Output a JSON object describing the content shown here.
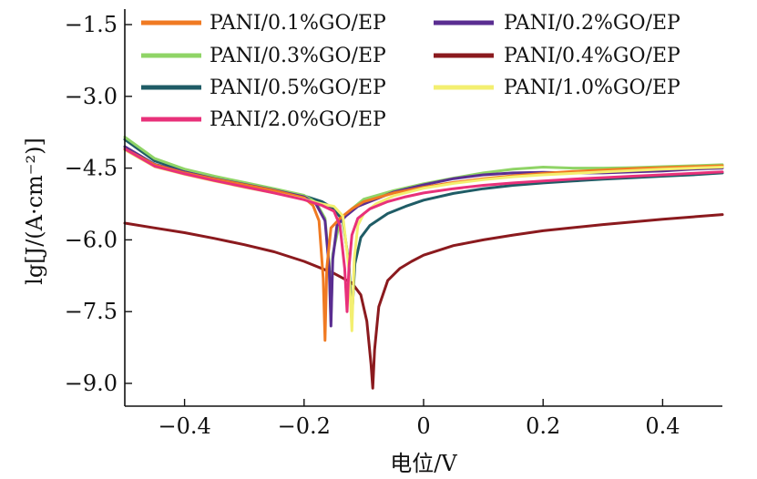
{
  "chart_data": {
    "type": "line",
    "xlabel": "电位/V",
    "ylabel": "lg[J/(A·cm⁻²)]",
    "xlim": [
      -0.5,
      0.5
    ],
    "ylim": [
      -9.5,
      -1.5
    ],
    "x_ticks": [
      -0.4,
      -0.2,
      0,
      0.2,
      0.4
    ],
    "x_tick_labels": [
      "−0.4",
      "−0.2",
      "0",
      "0.2",
      "0.4"
    ],
    "y_ticks": [
      -1.5,
      -3.0,
      -4.5,
      -6.0,
      -7.5,
      -9.0
    ],
    "y_tick_labels": [
      "−1.5",
      "−3.0",
      "−4.5",
      "−6.0",
      "−7.5",
      "−9.0"
    ],
    "grid": false,
    "legend_position": "top",
    "series": [
      {
        "name": "PANI/0.1%GO/EP",
        "color": "#f07a22",
        "x": [
          -0.5,
          -0.45,
          -0.4,
          -0.35,
          -0.3,
          -0.25,
          -0.2,
          -0.185,
          -0.175,
          -0.168,
          -0.165,
          -0.162,
          -0.155,
          -0.14,
          -0.12,
          -0.1,
          -0.05,
          0.0,
          0.05,
          0.1,
          0.15,
          0.2,
          0.25,
          0.3,
          0.35,
          0.4,
          0.45,
          0.5
        ],
        "y": [
          -4.1,
          -4.43,
          -4.6,
          -4.73,
          -4.85,
          -4.97,
          -5.12,
          -5.28,
          -5.6,
          -6.8,
          -8.1,
          -6.6,
          -5.75,
          -5.55,
          -5.35,
          -5.2,
          -5.02,
          -4.9,
          -4.8,
          -4.72,
          -4.66,
          -4.61,
          -4.57,
          -4.54,
          -4.51,
          -4.49,
          -4.47,
          -4.45
        ]
      },
      {
        "name": "PANI/0.2%GO/EP",
        "color": "#5a2d91",
        "x": [
          -0.5,
          -0.45,
          -0.4,
          -0.35,
          -0.3,
          -0.25,
          -0.2,
          -0.18,
          -0.165,
          -0.158,
          -0.155,
          -0.152,
          -0.145,
          -0.13,
          -0.11,
          -0.08,
          -0.05,
          0.0,
          0.05,
          0.1,
          0.15,
          0.2,
          0.25,
          0.3,
          0.35,
          0.4,
          0.45,
          0.5
        ],
        "y": [
          -4.05,
          -4.42,
          -4.58,
          -4.72,
          -4.84,
          -4.96,
          -5.1,
          -5.25,
          -5.6,
          -6.6,
          -7.8,
          -6.4,
          -5.7,
          -5.5,
          -5.3,
          -5.15,
          -5.0,
          -4.85,
          -4.72,
          -4.64,
          -4.6,
          -4.59,
          -4.6,
          -4.6,
          -4.58,
          -4.56,
          -4.52,
          -4.5
        ]
      },
      {
        "name": "PANI/0.3%GO/EP",
        "color": "#8fd466",
        "x": [
          -0.5,
          -0.45,
          -0.4,
          -0.35,
          -0.3,
          -0.25,
          -0.2,
          -0.18,
          -0.165,
          -0.158,
          -0.155,
          -0.152,
          -0.14,
          -0.12,
          -0.1,
          -0.05,
          0.0,
          0.05,
          0.1,
          0.15,
          0.2,
          0.25,
          0.3,
          0.35,
          0.4,
          0.45,
          0.5
        ],
        "y": [
          -3.85,
          -4.3,
          -4.52,
          -4.67,
          -4.8,
          -4.93,
          -5.07,
          -5.22,
          -5.55,
          -6.5,
          -7.7,
          -6.3,
          -5.6,
          -5.35,
          -5.15,
          -4.97,
          -4.83,
          -4.71,
          -4.6,
          -4.52,
          -4.48,
          -4.5,
          -4.5,
          -4.49,
          -4.47,
          -4.45,
          -4.43
        ]
      },
      {
        "name": "PANI/0.4%GO/EP",
        "color": "#8b1a1e",
        "x": [
          -0.5,
          -0.45,
          -0.4,
          -0.35,
          -0.3,
          -0.25,
          -0.2,
          -0.15,
          -0.12,
          -0.105,
          -0.095,
          -0.088,
          -0.085,
          -0.082,
          -0.075,
          -0.06,
          -0.04,
          -0.02,
          0.0,
          0.05,
          0.1,
          0.15,
          0.2,
          0.3,
          0.4,
          0.5
        ],
        "y": [
          -5.65,
          -5.75,
          -5.85,
          -5.97,
          -6.1,
          -6.25,
          -6.45,
          -6.7,
          -6.9,
          -7.15,
          -7.7,
          -8.6,
          -9.1,
          -8.3,
          -7.4,
          -6.85,
          -6.6,
          -6.45,
          -6.32,
          -6.12,
          -6.0,
          -5.9,
          -5.81,
          -5.68,
          -5.57,
          -5.47
        ]
      },
      {
        "name": "PANI/0.5%GO/EP",
        "color": "#1f5c66",
        "x": [
          -0.5,
          -0.45,
          -0.4,
          -0.35,
          -0.3,
          -0.25,
          -0.2,
          -0.17,
          -0.15,
          -0.135,
          -0.125,
          -0.12,
          -0.115,
          -0.105,
          -0.09,
          -0.06,
          -0.03,
          0.0,
          0.05,
          0.1,
          0.15,
          0.2,
          0.25,
          0.3,
          0.35,
          0.4,
          0.45,
          0.5
        ],
        "y": [
          -3.9,
          -4.35,
          -4.55,
          -4.7,
          -4.82,
          -4.94,
          -5.08,
          -5.2,
          -5.35,
          -5.6,
          -6.5,
          -7.6,
          -6.5,
          -5.95,
          -5.7,
          -5.45,
          -5.3,
          -5.17,
          -5.03,
          -4.93,
          -4.86,
          -4.81,
          -4.77,
          -4.73,
          -4.7,
          -4.67,
          -4.64,
          -4.6
        ]
      },
      {
        "name": "PANI/1.0%GO/EP",
        "color": "#f3ef70",
        "x": [
          -0.5,
          -0.45,
          -0.4,
          -0.35,
          -0.3,
          -0.25,
          -0.2,
          -0.17,
          -0.15,
          -0.135,
          -0.125,
          -0.12,
          -0.116,
          -0.11,
          -0.1,
          -0.08,
          -0.05,
          0.0,
          0.05,
          0.1,
          0.15,
          0.2,
          0.25,
          0.3,
          0.35,
          0.4,
          0.45,
          0.5
        ],
        "y": [
          -4.12,
          -4.47,
          -4.63,
          -4.77,
          -4.9,
          -5.02,
          -5.15,
          -5.25,
          -5.3,
          -5.5,
          -6.6,
          -7.9,
          -6.4,
          -5.7,
          -5.45,
          -5.25,
          -5.08,
          -4.92,
          -4.82,
          -4.74,
          -4.68,
          -4.64,
          -4.61,
          -4.58,
          -4.55,
          -4.52,
          -4.5,
          -4.48
        ]
      },
      {
        "name": "PANI/2.0%GO/EP",
        "color": "#e8317a",
        "x": [
          -0.5,
          -0.45,
          -0.4,
          -0.35,
          -0.3,
          -0.25,
          -0.2,
          -0.17,
          -0.15,
          -0.14,
          -0.132,
          -0.128,
          -0.125,
          -0.12,
          -0.11,
          -0.09,
          -0.06,
          -0.03,
          0.0,
          0.05,
          0.1,
          0.15,
          0.2,
          0.25,
          0.3,
          0.35,
          0.4,
          0.45,
          0.5
        ],
        "y": [
          -4.1,
          -4.46,
          -4.62,
          -4.76,
          -4.89,
          -5.02,
          -5.16,
          -5.28,
          -5.4,
          -5.7,
          -6.6,
          -7.5,
          -6.6,
          -5.9,
          -5.55,
          -5.35,
          -5.2,
          -5.1,
          -5.02,
          -4.93,
          -4.86,
          -4.81,
          -4.77,
          -4.73,
          -4.7,
          -4.67,
          -4.64,
          -4.61,
          -4.58
        ]
      }
    ]
  }
}
